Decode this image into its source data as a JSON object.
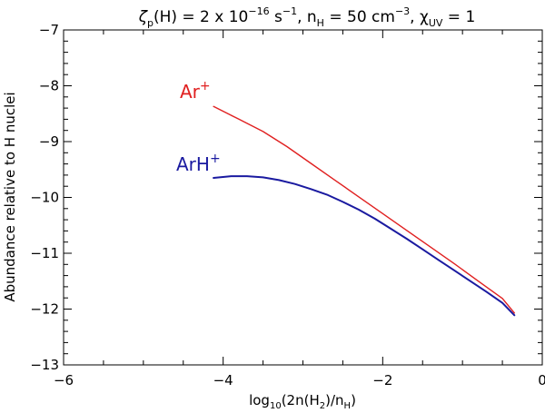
{
  "chart_data": {
    "type": "line",
    "title": {
      "zeta": "ζ",
      "zeta_sub": "p",
      "part1": "(H) = 2 x 10",
      "exp1": "−16",
      "part2": " s",
      "exp2": "−1",
      "part3": ", n",
      "sub_h": "H",
      "part4": " = 50 cm",
      "exp3": "−3",
      "part5": ", χ",
      "sub_uv": "UV",
      "part6": " = 1"
    },
    "xlabel": {
      "pre": "log",
      "sub1": "10",
      "mid": "(2n(H",
      "sub2": "2",
      "mid2": ")/n",
      "sub3": "H",
      "post": ")"
    },
    "ylabel": "Abundance relative to H nuclei",
    "xlim": [
      -6,
      0
    ],
    "ylim": [
      -13,
      -7
    ],
    "x_ticks": [
      -6,
      -4,
      -2,
      0
    ],
    "x_tick_labels": [
      "−6",
      "−4",
      "−2",
      "0"
    ],
    "y_ticks": [
      -13,
      -12,
      -11,
      -10,
      -9,
      -8,
      -7
    ],
    "y_tick_labels": [
      "−13",
      "−12",
      "−11",
      "−10",
      "−9",
      "−8",
      "−7"
    ],
    "grid": false,
    "series": [
      {
        "name": "Ar+",
        "label_main": "Ar",
        "label_sup": "+",
        "color": "#e02020",
        "x": [
          -4.12,
          -3.8,
          -3.5,
          -3.2,
          -2.9,
          -2.6,
          -2.3,
          -2.0,
          -1.7,
          -1.4,
          -1.1,
          -0.8,
          -0.5,
          -0.35
        ],
        "y": [
          -8.37,
          -8.6,
          -8.82,
          -9.09,
          -9.39,
          -9.69,
          -9.99,
          -10.29,
          -10.59,
          -10.89,
          -11.19,
          -11.5,
          -11.81,
          -12.07
        ]
      },
      {
        "name": "ArH+",
        "label_main": "ArH",
        "label_sup": "+",
        "color": "#1a1aa0",
        "x": [
          -4.12,
          -3.9,
          -3.7,
          -3.5,
          -3.3,
          -3.1,
          -2.9,
          -2.7,
          -2.5,
          -2.3,
          -2.1,
          -1.9,
          -1.7,
          -1.5,
          -1.3,
          -1.1,
          -0.9,
          -0.7,
          -0.5,
          -0.35
        ],
        "y": [
          -9.65,
          -9.62,
          -9.62,
          -9.64,
          -9.69,
          -9.76,
          -9.85,
          -9.95,
          -10.08,
          -10.22,
          -10.38,
          -10.56,
          -10.74,
          -10.93,
          -11.12,
          -11.31,
          -11.5,
          -11.69,
          -11.89,
          -12.11
        ]
      }
    ]
  }
}
